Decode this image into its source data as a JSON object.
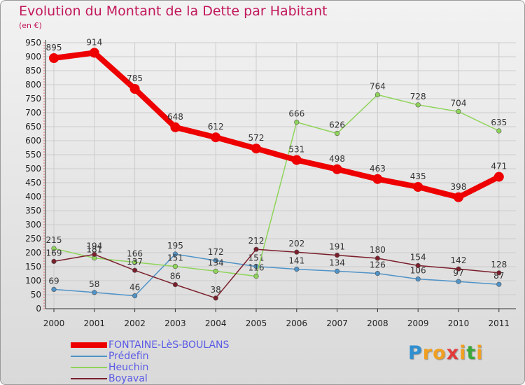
{
  "header": {
    "title": "Evolution du Montant de la Dette par Habitant",
    "subtitle": "(en €)"
  },
  "colors": {
    "title": "#c2185b",
    "grid": "#cccccc",
    "axis": "#333333"
  },
  "chart_data": {
    "type": "line",
    "title": "Evolution du Montant de la Dette par Habitant",
    "ylabel": "(en €)",
    "ylim": [
      0,
      950
    ],
    "y_ticks": [
      0,
      50,
      100,
      150,
      200,
      250,
      300,
      350,
      400,
      450,
      500,
      550,
      600,
      650,
      700,
      750,
      800,
      850,
      900,
      950
    ],
    "categories": [
      "2000",
      "2001",
      "2002",
      "2003",
      "2004",
      "2005",
      "2006",
      "2007",
      "2008",
      "2009",
      "2010",
      "2011"
    ],
    "grid": true,
    "legend_position": "bottom-left",
    "series": [
      {
        "name": "FONTAINE-LèS-BOULANS",
        "color": "#ee0000",
        "values": [
          895,
          914,
          785,
          648,
          612,
          572,
          531,
          498,
          463,
          435,
          398,
          471
        ]
      },
      {
        "name": "Prédefin",
        "color": "#4f93c8",
        "values": [
          69,
          58,
          46,
          195,
          172,
          151,
          141,
          134,
          126,
          106,
          97,
          87
        ]
      },
      {
        "name": "Heuchin",
        "color": "#8fd45a",
        "values": [
          215,
          181,
          166,
          151,
          134,
          116,
          666,
          626,
          764,
          728,
          704,
          635
        ]
      },
      {
        "name": "Boyaval",
        "color": "#7a1f2b",
        "values": [
          169,
          194,
          137,
          86,
          38,
          212,
          202,
          191,
          180,
          154,
          142,
          128
        ]
      }
    ]
  },
  "logo": {
    "letters": [
      {
        "ch": "P",
        "color": "#2f8fd0"
      },
      {
        "ch": "r",
        "color": "#f0a020"
      },
      {
        "ch": "o",
        "color": "#f0a020"
      },
      {
        "ch": "x",
        "color": "#e23a3a"
      },
      {
        "ch": "i",
        "color": "#f0a020"
      },
      {
        "ch": "t",
        "color": "#3aa83a"
      },
      {
        "ch": "i",
        "color": "#f0a020"
      }
    ]
  }
}
